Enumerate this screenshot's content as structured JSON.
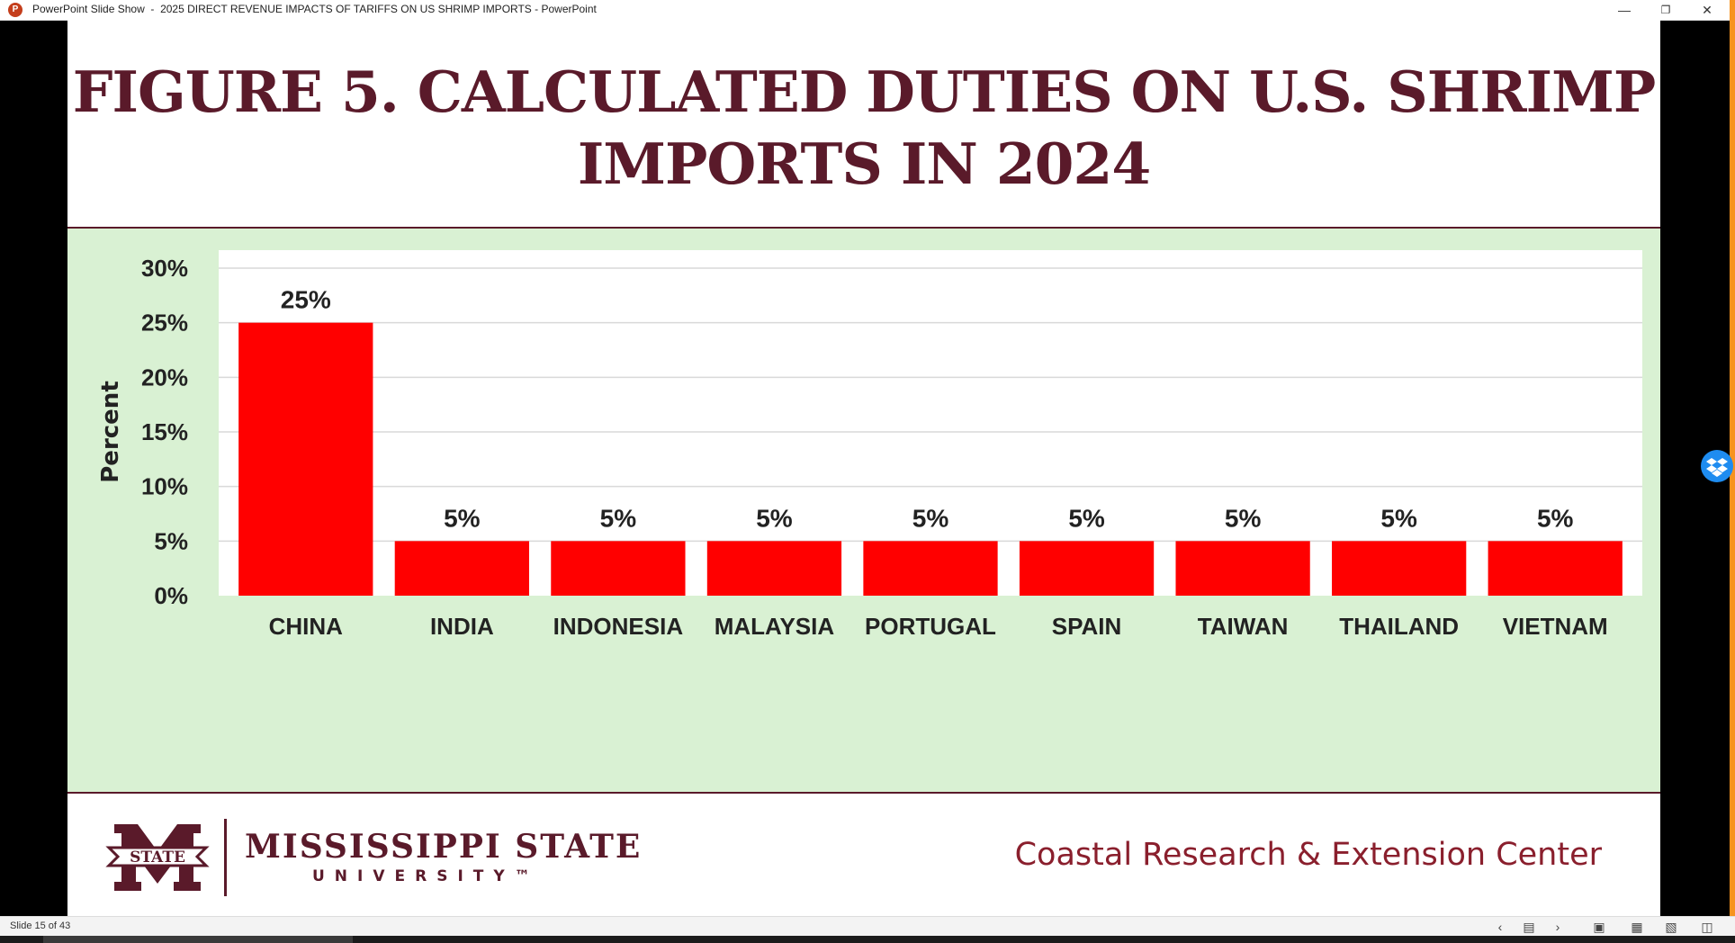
{
  "window": {
    "app_icon": "P",
    "title": "PowerPoint Slide Show  -  2025 DIRECT REVENUE IMPACTS OF TARIFFS ON US SHRIMP IMPORTS - PowerPoint",
    "minimize_icon": "minimize-icon",
    "restore_icon": "restore-icon",
    "close_icon": "close-icon"
  },
  "slide": {
    "title_line1": "FIGURE 5. CALCULATED DUTIES ON U.S. SHRIMP",
    "title_line2": "IMPORTS IN 2024",
    "footer": {
      "logo_text": "STATE",
      "university_name": "MISSISSIPPI STATE",
      "university_sub": "UNIVERSITY™",
      "center_name": "Coastal Research & Extension Center"
    }
  },
  "chart_data": {
    "type": "bar",
    "title": "",
    "xlabel": "",
    "ylabel": "Percent",
    "ylim": [
      0,
      30
    ],
    "yticks": [
      "0%",
      "5%",
      "10%",
      "15%",
      "20%",
      "25%",
      "30%"
    ],
    "categories": [
      "CHINA",
      "INDIA",
      "INDONESIA",
      "MALAYSIA",
      "PORTUGAL",
      "SPAIN",
      "TAIWAN",
      "THAILAND",
      "VIETNAM"
    ],
    "values": [
      25,
      5,
      5,
      5,
      5,
      5,
      5,
      5,
      5
    ],
    "data_labels": [
      "25%",
      "5%",
      "5%",
      "5%",
      "5%",
      "5%",
      "5%",
      "5%",
      "5%"
    ],
    "grid": true,
    "legend": false,
    "colors": {
      "bar": "#ff0000",
      "panel": "#d9f1d3",
      "plot": "#ffffff",
      "grid": "#d9d9d9"
    }
  },
  "statusbar": {
    "slide_indicator": "Slide 15 of 43",
    "prev_icon": "chevron-left-icon",
    "notes_icon": "notes-icon",
    "next_icon": "chevron-right-icon",
    "normal_view_icon": "normal-view-icon",
    "sorter_view_icon": "slide-sorter-icon",
    "reading_view_icon": "reading-view-icon",
    "slideshow_icon": "slideshow-icon"
  },
  "colors": {
    "brand_maroon": "#5a1a2a",
    "accent_orange": "#f7931e"
  }
}
